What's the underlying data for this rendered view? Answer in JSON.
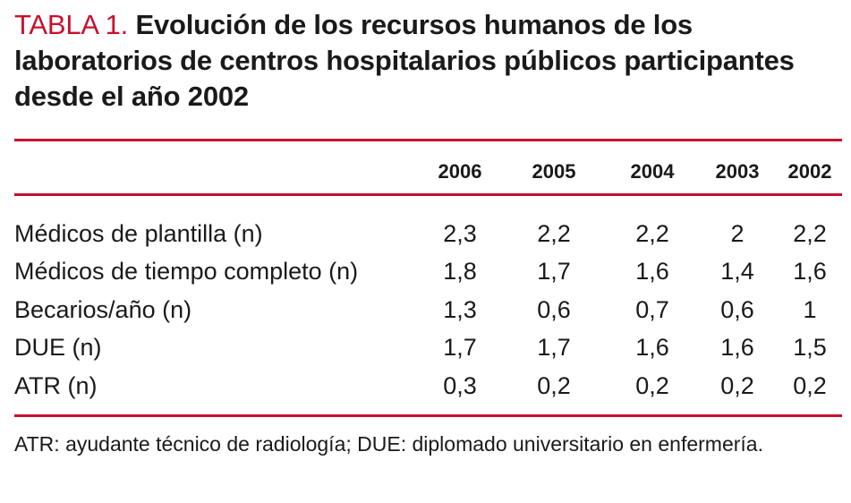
{
  "table": {
    "label": "TABLA 1.",
    "title": "Evolución de los recursos humanos de los laboratorios de centros hospitalarios públicos participantes desde el año 2002",
    "columns": [
      "2006",
      "2005",
      "2004",
      "2003",
      "2002"
    ],
    "rows": [
      {
        "label": "Médicos de plantilla (n)",
        "values": [
          "2,3",
          "2,2",
          "2,2",
          "2",
          "2,2"
        ]
      },
      {
        "label": "Médicos de tiempo completo (n)",
        "values": [
          "1,8",
          "1,7",
          "1,6",
          "1,4",
          "1,6"
        ]
      },
      {
        "label": "Becarios/año (n)",
        "values": [
          "1,3",
          "0,6",
          "0,7",
          "0,6",
          "1"
        ]
      },
      {
        "label": "DUE (n)",
        "values": [
          "1,7",
          "1,7",
          "1,6",
          "1,6",
          "1,5"
        ]
      },
      {
        "label": "ATR (n)",
        "values": [
          "0,3",
          "0,2",
          "0,2",
          "0,2",
          "0,2"
        ]
      }
    ],
    "footnote": "ATR: ayudante técnico de radiología; DUE: diplomado universitario en enfermería."
  },
  "colors": {
    "accent": "#c8102e",
    "text": "#1a1a1a"
  }
}
